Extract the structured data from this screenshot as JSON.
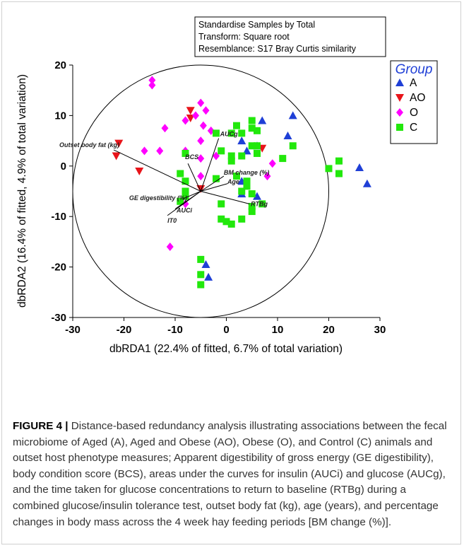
{
  "chart_data": {
    "type": "scatter",
    "annotation": [
      "Standardise Samples by Total",
      "Transform: Square root",
      "Resemblance: S17 Bray Curtis similarity"
    ],
    "xlabel": "dbRDA1 (22.4% of fitted, 6.7% of total variation)",
    "ylabel": "dbRDA2 (16.4% of fitted, 4.9% of total variation)",
    "xlim": [
      -30,
      30
    ],
    "ylim": [
      -30,
      20
    ],
    "xticks": [
      "-30",
      "-20",
      "-10",
      "0",
      "10",
      "20",
      "30"
    ],
    "yticks": [
      "20",
      "10",
      "0",
      "-10",
      "-20",
      "-30"
    ],
    "grid": false,
    "legend_position": "right",
    "legend_title": "Group",
    "circle": {
      "center": [
        -5,
        -5
      ],
      "radius": 25
    },
    "series": [
      {
        "name": "A",
        "marker": "triangle-up",
        "color": "#1f3fd6",
        "points": [
          [
            7,
            9
          ],
          [
            13,
            10
          ],
          [
            12,
            6
          ],
          [
            3,
            5
          ],
          [
            4,
            3
          ],
          [
            6,
            4
          ],
          [
            3,
            -3
          ],
          [
            3,
            -5.5
          ],
          [
            6,
            -6
          ],
          [
            26,
            -0.3
          ],
          [
            27.5,
            -3.5
          ],
          [
            -4,
            -19.5
          ],
          [
            -3.5,
            -22
          ]
        ]
      },
      {
        "name": "AO",
        "marker": "triangle-down",
        "color": "#e8141a",
        "points": [
          [
            -7,
            11
          ],
          [
            -7,
            9.5
          ],
          [
            -21,
            4.5
          ],
          [
            -21.5,
            2
          ],
          [
            -17,
            -1
          ],
          [
            -5,
            -4.5
          ],
          [
            7,
            3.5
          ]
        ]
      },
      {
        "name": "O",
        "marker": "diamond",
        "color": "#ff00ff",
        "points": [
          [
            -14.5,
            17
          ],
          [
            -14.5,
            16
          ],
          [
            -12,
            7.5
          ],
          [
            -8,
            9
          ],
          [
            -6,
            10
          ],
          [
            -5,
            12.5
          ],
          [
            -4,
            11
          ],
          [
            -4.5,
            8
          ],
          [
            -3,
            7
          ],
          [
            -5,
            5
          ],
          [
            -5,
            1.5
          ],
          [
            -2,
            2
          ],
          [
            -16,
            3
          ],
          [
            -13,
            3
          ],
          [
            -8,
            3
          ],
          [
            -5,
            -2
          ],
          [
            -8,
            -7.5
          ],
          [
            -11,
            -16
          ],
          [
            8,
            -2
          ],
          [
            9,
            0.5
          ]
        ]
      },
      {
        "name": "C",
        "marker": "square",
        "color": "#22e80c",
        "points": [
          [
            -8,
            2.5
          ],
          [
            -9,
            -1.5
          ],
          [
            -8,
            -3
          ],
          [
            -8,
            -5
          ],
          [
            -8,
            -6
          ],
          [
            -9,
            -7
          ],
          [
            -2,
            6.5
          ],
          [
            -1,
            3
          ],
          [
            1,
            6.5
          ],
          [
            2,
            8
          ],
          [
            3,
            6.5
          ],
          [
            5,
            9
          ],
          [
            5,
            7.5
          ],
          [
            6,
            7
          ],
          [
            1,
            2
          ],
          [
            1,
            1
          ],
          [
            3,
            2
          ],
          [
            5,
            4
          ],
          [
            6,
            4
          ],
          [
            6,
            2.5
          ],
          [
            2,
            -2
          ],
          [
            4,
            -3
          ],
          [
            4,
            -4
          ],
          [
            3,
            -5
          ],
          [
            5,
            -5.5
          ],
          [
            -2,
            -2.5
          ],
          [
            -1,
            -7.5
          ],
          [
            -1,
            -10.5
          ],
          [
            0,
            -11
          ],
          [
            1,
            -11.5
          ],
          [
            3,
            -10.5
          ],
          [
            5,
            -9
          ],
          [
            5,
            -8
          ],
          [
            7,
            -7.5
          ],
          [
            11,
            1.5
          ],
          [
            13,
            4
          ],
          [
            20,
            -0.5
          ],
          [
            22,
            1
          ],
          [
            22,
            -1.5
          ],
          [
            -5,
            -18.5
          ],
          [
            -5,
            -21.5
          ],
          [
            -5,
            -23.5
          ]
        ]
      }
    ],
    "vectors": [
      {
        "label": "Outset body fat (kg)",
        "end": [
          -22,
          3.2
        ],
        "label_anchor": "end"
      },
      {
        "label": "BCS",
        "end": [
          -7.5,
          0.5
        ],
        "label_anchor": "start"
      },
      {
        "label": "AUCg",
        "end": [
          -1.5,
          5.5
        ],
        "label_anchor": "start"
      },
      {
        "label": "BM change (%)",
        "end": [
          -0.5,
          -2
        ],
        "label_anchor": "start"
      },
      {
        "label": "Age",
        "end": [
          0.2,
          -3.5
        ],
        "label_anchor": "start"
      },
      {
        "label": "RTBg",
        "end": [
          4.5,
          -7.5
        ],
        "label_anchor": "start"
      },
      {
        "label": "GE digestibility (%)",
        "end": [
          -8.5,
          -6.5
        ],
        "label_anchor": "end"
      },
      {
        "label": "AUCi",
        "end": [
          -10,
          -8.5
        ],
        "label_anchor": "start"
      },
      {
        "label": "IT0",
        "end": [
          -11.5,
          -9.8
        ],
        "label_anchor": "start"
      }
    ]
  },
  "caption": {
    "label": "FIGURE 4 |",
    "text": " Distance-based redundancy analysis illustrating associations between the fecal microbiome of Aged (A), Aged and Obese (AO), Obese (O), and Control (C) animals and outset host phenotype measures; Apparent digestibility of gross energy (GE digestibility), body condition score (BCS), areas under the curves for insulin (AUCi) and glucose (AUCg), and the time taken for glucose concentrations to return to baseline (RTBg) during a combined glucose/insulin tolerance test, outset body fat (kg), age (years), and percentage changes in body mass across the 4 week hay feeding periods [BM change (%)]."
  }
}
